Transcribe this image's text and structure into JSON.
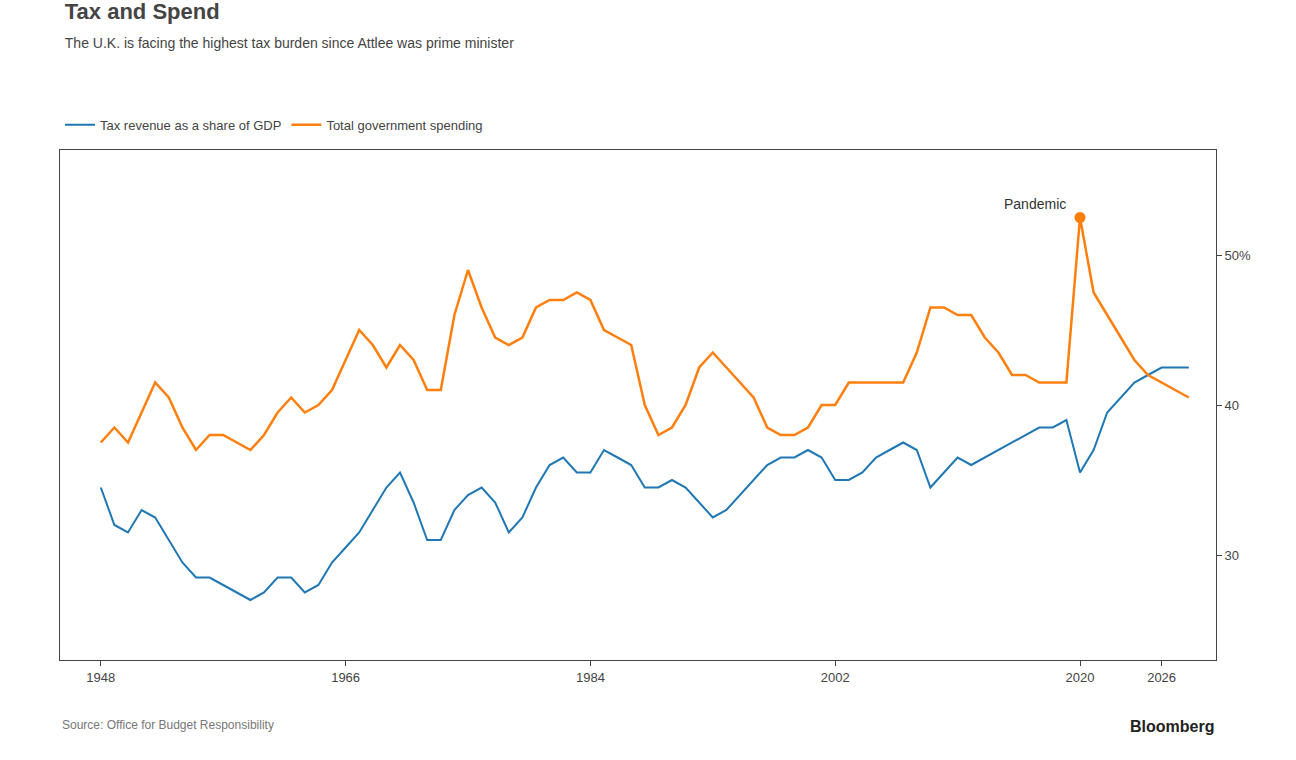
{
  "chart_data": {
    "type": "line",
    "title": "Tax and Spend",
    "subtitle": "The U.K. is facing the highest tax burden since Attlee was prime minister",
    "source": "Source: Office for Budget Responsibility",
    "credit": "Bloomberg",
    "x": [
      1948,
      1949,
      1950,
      1951,
      1952,
      1953,
      1954,
      1955,
      1956,
      1957,
      1958,
      1959,
      1960,
      1961,
      1962,
      1963,
      1964,
      1965,
      1966,
      1967,
      1968,
      1969,
      1970,
      1971,
      1972,
      1973,
      1974,
      1975,
      1976,
      1977,
      1978,
      1979,
      1980,
      1981,
      1982,
      1983,
      1984,
      1985,
      1986,
      1987,
      1988,
      1989,
      1990,
      1991,
      1992,
      1993,
      1994,
      1995,
      1996,
      1997,
      1998,
      1999,
      2000,
      2001,
      2002,
      2003,
      2004,
      2005,
      2006,
      2007,
      2008,
      2009,
      2010,
      2011,
      2012,
      2013,
      2014,
      2015,
      2016,
      2017,
      2018,
      2019,
      2020,
      2021,
      2022,
      2023,
      2024,
      2025,
      2026,
      2027,
      2028
    ],
    "series": [
      {
        "name": "Tax revenue as a share of GDP",
        "values": [
          34.5,
          32.0,
          31.5,
          33.0,
          32.5,
          31.0,
          29.5,
          28.5,
          28.5,
          28.0,
          27.5,
          27.0,
          27.5,
          28.5,
          28.5,
          27.5,
          28.0,
          29.5,
          30.5,
          31.5,
          33.0,
          34.5,
          35.5,
          33.5,
          31.0,
          31.0,
          33.0,
          34.0,
          34.5,
          33.5,
          31.5,
          32.5,
          34.5,
          36.0,
          36.5,
          35.5,
          35.5,
          37.0,
          36.5,
          36.0,
          34.5,
          34.5,
          35.0,
          34.5,
          33.5,
          32.5,
          33.0,
          34.0,
          35.0,
          36.0,
          36.5,
          36.5,
          37.0,
          36.5,
          35.0,
          35.0,
          35.5,
          36.5,
          37.0,
          37.5,
          37.0,
          34.5,
          35.5,
          36.5,
          36.0,
          36.5,
          37.0,
          37.5,
          38.0,
          38.5,
          38.5,
          39.0,
          35.5,
          37.0,
          39.5,
          40.5,
          41.5,
          42.0,
          42.5,
          42.5,
          42.5
        ]
      },
      {
        "name": "Total government spending",
        "values": [
          37.5,
          38.5,
          37.5,
          39.5,
          41.5,
          40.5,
          38.5,
          37.0,
          38.0,
          38.0,
          37.5,
          37.0,
          38.0,
          39.5,
          40.5,
          39.5,
          40.0,
          41.0,
          43.0,
          45.0,
          44.0,
          42.5,
          44.0,
          43.0,
          41.0,
          41.0,
          46.0,
          49.0,
          46.5,
          44.5,
          44.0,
          44.5,
          46.5,
          47.0,
          47.0,
          47.5,
          47.0,
          45.0,
          44.5,
          44.0,
          40.0,
          38.0,
          38.5,
          40.0,
          42.5,
          43.5,
          42.5,
          41.5,
          40.5,
          38.5,
          38.0,
          38.0,
          38.5,
          40.0,
          40.0,
          41.5,
          41.5,
          41.5,
          41.5,
          41.5,
          43.5,
          46.5,
          46.5,
          46.0,
          46.0,
          44.5,
          43.5,
          42.0,
          42.0,
          41.5,
          41.5,
          41.5,
          52.5,
          47.5,
          46.0,
          44.5,
          43.0,
          42.0,
          41.5,
          41.0,
          40.5
        ]
      }
    ],
    "annotations": [
      {
        "text": "Pandemic",
        "x": 2020,
        "y": 52.5
      }
    ],
    "xlim": [
      1945,
      2030
    ],
    "xticks": [
      1948,
      1966,
      1984,
      2002,
      2020,
      2026
    ],
    "ylim": [
      23,
      57
    ],
    "yticks": [
      30,
      40,
      {
        "value": 50,
        "label": "50%"
      }
    ],
    "grid": false
  }
}
